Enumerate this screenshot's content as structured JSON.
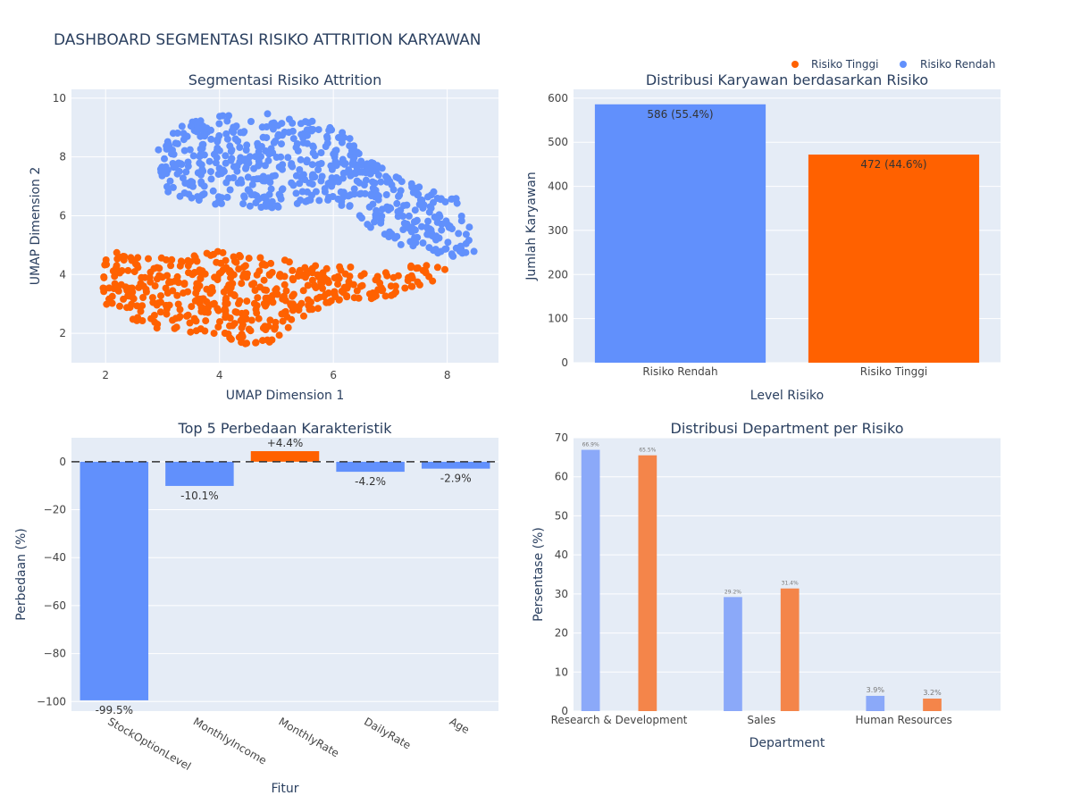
{
  "dashboard_title": "DASHBOARD SEGMENTASI RISIKO ATTRITION KARYAWAN",
  "legend": [
    {
      "name": "Risiko Tinggi",
      "color": "#ff6100"
    },
    {
      "name": "Risiko Rendah",
      "color": "#6190fc"
    }
  ],
  "colors": {
    "plot_bg": "#e5ecf6",
    "grid": "#ffffff",
    "blue": "#6190fc",
    "orange": "#ff6100",
    "blue_light": "#8ba9f9",
    "orange_light": "#f4854a"
  },
  "chart_data": [
    {
      "type": "scatter",
      "title": "Segmentasi Risiko Attrition",
      "xlabel": "UMAP Dimension 1",
      "ylabel": "UMAP Dimension 2",
      "xlim": [
        1.4,
        8.9
      ],
      "ylim": [
        1.0,
        10.3
      ],
      "xticks": [
        2,
        4,
        6,
        8
      ],
      "yticks": [
        2,
        4,
        6,
        8,
        10
      ],
      "series": [
        {
          "name": "Risiko Rendah",
          "color": "#6190fc",
          "count": 586,
          "outline": [
            [
              2.8,
              8.0
            ],
            [
              3.0,
              8.7
            ],
            [
              3.3,
              9.1
            ],
            [
              3.8,
              9.3
            ],
            [
              4.1,
              9.5
            ],
            [
              4.4,
              9.2
            ],
            [
              4.7,
              9.6
            ],
            [
              5.1,
              9.3
            ],
            [
              5.5,
              9.3
            ],
            [
              6.0,
              9.1
            ],
            [
              6.3,
              8.7
            ],
            [
              6.5,
              8.3
            ],
            [
              6.9,
              7.6
            ],
            [
              7.3,
              7.2
            ],
            [
              7.8,
              6.8
            ],
            [
              8.2,
              6.6
            ],
            [
              8.4,
              5.6
            ],
            [
              8.5,
              4.6
            ],
            [
              8.0,
              4.6
            ],
            [
              7.6,
              4.9
            ],
            [
              7.2,
              5.0
            ],
            [
              6.8,
              5.3
            ],
            [
              6.5,
              5.8
            ],
            [
              6.2,
              6.1
            ],
            [
              5.8,
              6.2
            ],
            [
              5.3,
              6.2
            ],
            [
              4.8,
              6.3
            ],
            [
              4.2,
              6.2
            ],
            [
              3.7,
              6.4
            ],
            [
              3.3,
              6.6
            ],
            [
              3.0,
              6.9
            ],
            [
              2.9,
              7.7
            ]
          ]
        },
        {
          "name": "Risiko Tinggi",
          "color": "#ff6100",
          "count": 472,
          "outline": [
            [
              1.9,
              3.9
            ],
            [
              2.0,
              4.7
            ],
            [
              2.2,
              5.0
            ],
            [
              2.6,
              4.7
            ],
            [
              3.3,
              4.6
            ],
            [
              3.9,
              4.8
            ],
            [
              4.4,
              4.7
            ],
            [
              4.9,
              4.5
            ],
            [
              5.3,
              4.5
            ],
            [
              5.8,
              4.3
            ],
            [
              6.3,
              4.3
            ],
            [
              6.8,
              4.2
            ],
            [
              7.4,
              4.3
            ],
            [
              7.7,
              4.5
            ],
            [
              8.0,
              4.2
            ],
            [
              7.8,
              3.8
            ],
            [
              7.2,
              3.3
            ],
            [
              6.8,
              3.1
            ],
            [
              6.2,
              3.2
            ],
            [
              5.6,
              2.7
            ],
            [
              5.3,
              2.2
            ],
            [
              5.0,
              1.7
            ],
            [
              4.6,
              1.6
            ],
            [
              4.2,
              1.7
            ],
            [
              3.6,
              2.0
            ],
            [
              3.0,
              2.1
            ],
            [
              2.6,
              2.4
            ],
            [
              2.2,
              2.6
            ],
            [
              1.9,
              2.9
            ]
          ]
        }
      ]
    },
    {
      "type": "bar",
      "title": "Distribusi Karyawan berdasarkan Risiko",
      "xlabel": "Level Risiko",
      "ylabel": "Jumlah Karyawan",
      "ylim": [
        0,
        620
      ],
      "yticks": [
        0,
        100,
        200,
        300,
        400,
        500,
        600
      ],
      "categories": [
        "Risiko Rendah",
        "Risiko Tinggi"
      ],
      "values": [
        586,
        472
      ],
      "labels": [
        "586 (55.4%)",
        "472 (44.6%)"
      ],
      "colors": [
        "#6190fc",
        "#ff6100"
      ]
    },
    {
      "type": "bar",
      "title": "Top 5 Perbedaan Karakteristik",
      "xlabel": "Fitur",
      "ylabel": "Perbedaan (%)",
      "ylim": [
        -104,
        10
      ],
      "yticks": [
        0,
        -20,
        -40,
        -60,
        -80,
        -100
      ],
      "ytick_labels": [
        "0",
        "−20",
        "−40",
        "−60",
        "−80",
        "−100"
      ],
      "categories": [
        "StockOptionLevel",
        "MonthlyIncome",
        "MonthlyRate",
        "DailyRate",
        "Age"
      ],
      "values": [
        -99.5,
        -10.1,
        4.4,
        -4.2,
        -2.9
      ],
      "labels": [
        "-99.5%",
        "-10.1%",
        "+4.4%",
        "-4.2%",
        "-2.9%"
      ],
      "reference_line": 0
    },
    {
      "type": "bar",
      "title": "Distribusi Department per Risiko",
      "xlabel": "Department",
      "ylabel": "Persentase (%)",
      "ylim": [
        0,
        70
      ],
      "yticks": [
        0,
        10,
        20,
        30,
        40,
        50,
        60,
        70
      ],
      "categories": [
        "Research & Development",
        "Sales",
        "Human Resources"
      ],
      "series": [
        {
          "name": "Risiko Rendah",
          "values": [
            66.9,
            29.2,
            3.9
          ],
          "labels": [
            "66.9%",
            "29.2%",
            "3.9%"
          ]
        },
        {
          "name": "Risiko Tinggi",
          "values": [
            65.5,
            31.4,
            3.2
          ],
          "labels": [
            "65.5%",
            "31.4%",
            "3.2%"
          ]
        }
      ]
    }
  ]
}
